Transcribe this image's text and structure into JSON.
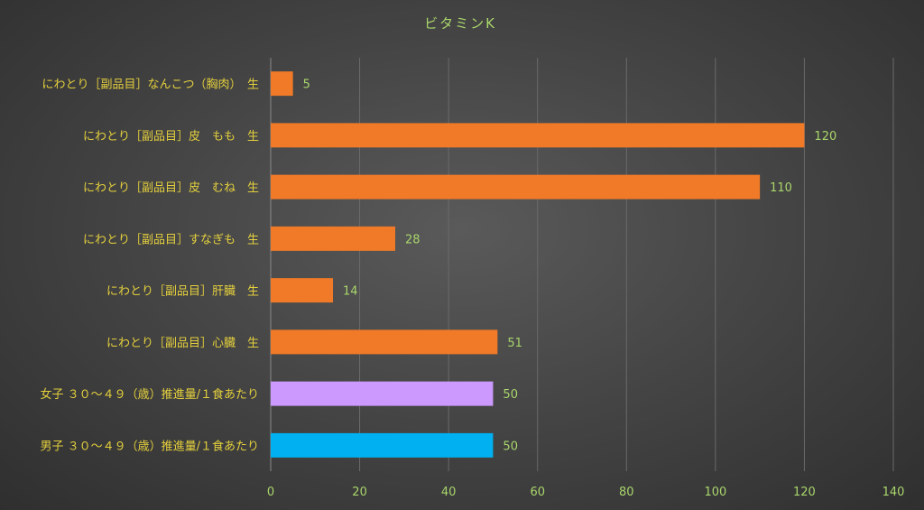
{
  "chart_data": {
    "type": "bar",
    "orientation": "horizontal",
    "title": "ビタミンK",
    "xlim": [
      0,
      140
    ],
    "x_ticks": [
      0,
      20,
      40,
      60,
      80,
      100,
      120,
      140
    ],
    "grid": true,
    "legend": "none",
    "categories": [
      "にわとり［副品目］なんこつ（胸肉）　生",
      "にわとり［副品目］皮　もも　生",
      "にわとり［副品目］皮　むね　生",
      "にわとり［副品目］すなぎも　生",
      "にわとり［副品目］肝臓　生",
      "にわとり［副品目］心臓　生",
      "女子 ３０～４９（歳）推進量/１食あたり",
      "男子 ３０～４９（歳）推進量/１食あたり"
    ],
    "values": [
      5,
      120,
      110,
      28,
      14,
      51,
      50,
      50
    ],
    "bar_colors": [
      "#f07a28",
      "#f07a28",
      "#f07a28",
      "#f07a28",
      "#f07a28",
      "#f07a28",
      "#cc99ff",
      "#00b0f0"
    ]
  }
}
